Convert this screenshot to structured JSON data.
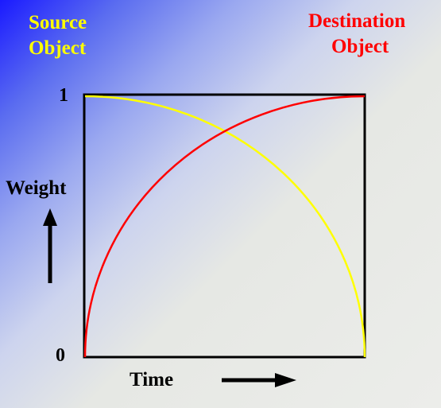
{
  "source_label": {
    "line1": "Source",
    "line2": "Object",
    "color": "#ffff00"
  },
  "destination_label": {
    "line1": "Destination",
    "line2": "Object",
    "color": "#ff0000"
  },
  "y_axis": {
    "label": "Weight",
    "max_label": "1",
    "min_label": "0"
  },
  "x_axis": {
    "label": "Time"
  },
  "curves": [
    {
      "name": "source",
      "color": "#ffff00",
      "shape": "quarter-circle, falls from 1 to 0"
    },
    {
      "name": "destination",
      "color": "#ff0000",
      "shape": "quarter-circle, rises from 0 to 1"
    }
  ],
  "colors": {
    "frame": "#000000",
    "arrow": "#000000"
  }
}
